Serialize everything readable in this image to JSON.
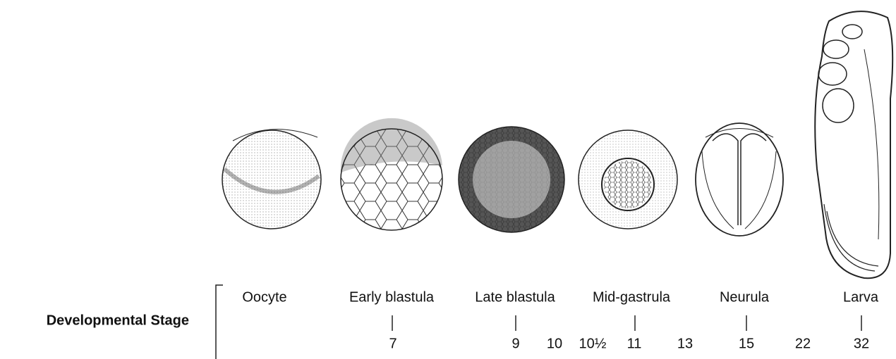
{
  "label": "Developmental Stage",
  "stages": [
    "Oocyte",
    "Early blastula",
    "Late blastula",
    "Mid-gastrula",
    "Neurula",
    "Larva"
  ],
  "stage_numbers": [
    "7",
    "9",
    "10",
    "10½",
    "11",
    "13",
    "15",
    "22",
    "32"
  ]
}
